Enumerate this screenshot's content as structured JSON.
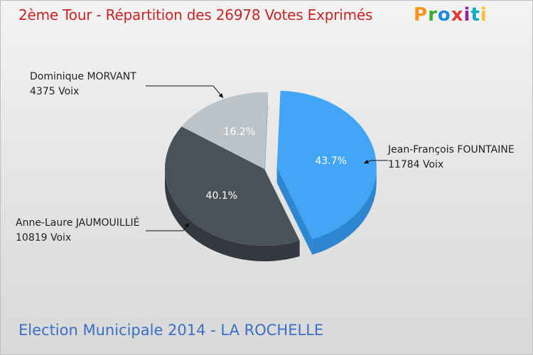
{
  "header": {
    "title": "2ème Tour - Répartition des 26978 Votes Exprimés",
    "logo": {
      "text": "Proxiti",
      "colors": [
        "#f7941d",
        "#3aaa35",
        "#1e88e5",
        "#e53935",
        "#8e24aa",
        "#00acc1",
        "#fbc02d"
      ]
    }
  },
  "footer": {
    "subtitle": "Election Municipale 2014 - LA ROCHELLE"
  },
  "colors": {
    "title": "#cc2222",
    "subtitle": "#3a6fc8"
  },
  "chart_data": {
    "type": "pie",
    "title": "2ème Tour - Répartition des 26978 Votes Exprimés",
    "total": 26978,
    "slices": [
      {
        "name": "Jean-François FOUNTAINE",
        "votes": "11784 Voix",
        "value": 11784,
        "pct": 43.7,
        "pct_label": "43.7%",
        "color": "#42a5f5",
        "side": "#2f86d0",
        "exploded": true
      },
      {
        "name": "Anne-Laure JAUMOUILLIÉ",
        "votes": "10819 Voix",
        "value": 10819,
        "pct": 40.1,
        "pct_label": "40.1%",
        "color": "#4a5259",
        "side": "#33393e",
        "exploded": false
      },
      {
        "name": "Dominique MORVANT",
        "votes": "4375 Voix",
        "value": 4375,
        "pct": 16.2,
        "pct_label": "16.2%",
        "color": "#bcc3c9",
        "side": "#9aa1a8",
        "exploded": false
      }
    ]
  }
}
